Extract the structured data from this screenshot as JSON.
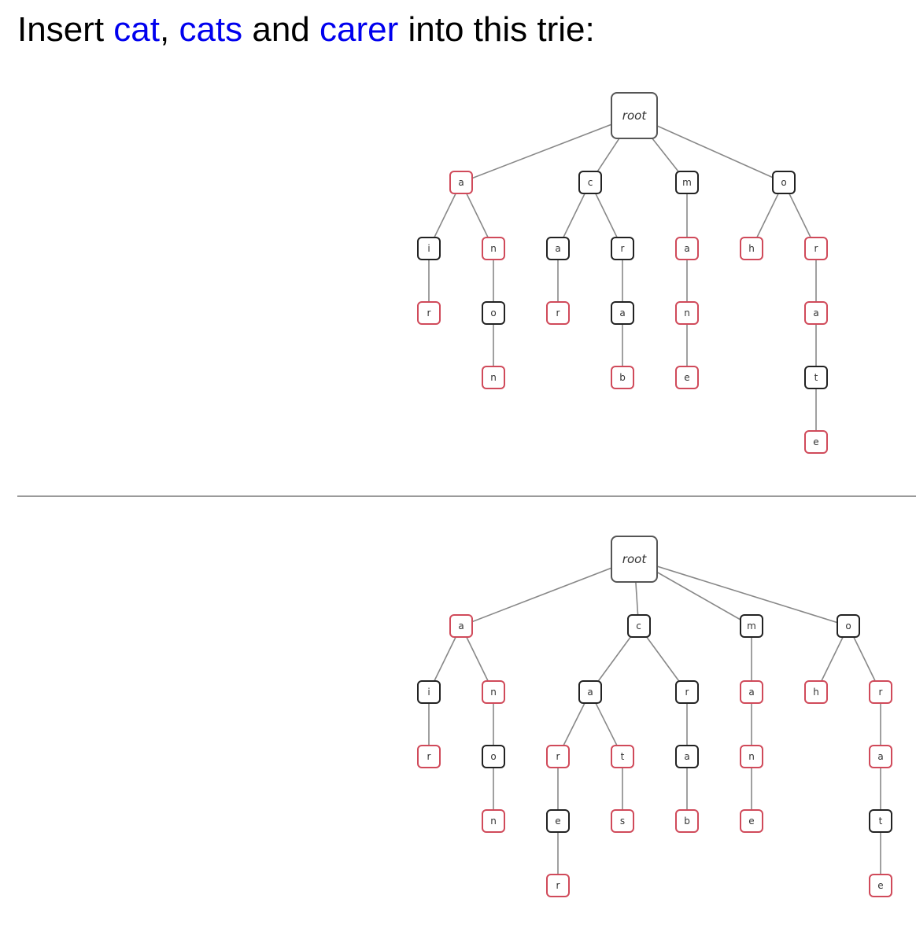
{
  "heading": {
    "prefix": "Insert ",
    "word1": "cat",
    "sep1": ", ",
    "word2": "cats",
    "sep2": " and ",
    "word3": "carer",
    "suffix": " into this trie:"
  },
  "colors": {
    "text": "#000000",
    "inserted_word": "#0000ee",
    "node_border": "#222222",
    "terminal_node_border": "#d04a5a",
    "edge": "#888888",
    "divider": "#9a9a9a"
  },
  "trie_before": {
    "root": "root",
    "children": [
      {
        "ch": "a",
        "end": true,
        "children": [
          {
            "ch": "i",
            "end": false,
            "children": [
              {
                "ch": "r",
                "end": true,
                "children": []
              }
            ]
          },
          {
            "ch": "n",
            "end": true,
            "children": [
              {
                "ch": "o",
                "end": false,
                "children": [
                  {
                    "ch": "n",
                    "end": true,
                    "children": []
                  }
                ]
              }
            ]
          }
        ]
      },
      {
        "ch": "c",
        "end": false,
        "children": [
          {
            "ch": "a",
            "end": false,
            "children": [
              {
                "ch": "r",
                "end": true,
                "children": []
              }
            ]
          },
          {
            "ch": "r",
            "end": false,
            "children": [
              {
                "ch": "a",
                "end": false,
                "children": [
                  {
                    "ch": "b",
                    "end": true,
                    "children": []
                  }
                ]
              }
            ]
          }
        ]
      },
      {
        "ch": "m",
        "end": false,
        "children": [
          {
            "ch": "a",
            "end": true,
            "children": [
              {
                "ch": "n",
                "end": true,
                "children": [
                  {
                    "ch": "e",
                    "end": true,
                    "children": []
                  }
                ]
              }
            ]
          }
        ]
      },
      {
        "ch": "o",
        "end": false,
        "children": [
          {
            "ch": "h",
            "end": true,
            "children": []
          },
          {
            "ch": "r",
            "end": true,
            "children": [
              {
                "ch": "a",
                "end": true,
                "children": [
                  {
                    "ch": "t",
                    "end": false,
                    "children": [
                      {
                        "ch": "e",
                        "end": true,
                        "children": []
                      }
                    ]
                  }
                ]
              }
            ]
          }
        ]
      }
    ]
  },
  "trie_after": {
    "root": "root",
    "children": [
      {
        "ch": "a",
        "end": true,
        "children": [
          {
            "ch": "i",
            "end": false,
            "children": [
              {
                "ch": "r",
                "end": true,
                "children": []
              }
            ]
          },
          {
            "ch": "n",
            "end": true,
            "children": [
              {
                "ch": "o",
                "end": false,
                "children": [
                  {
                    "ch": "n",
                    "end": true,
                    "children": []
                  }
                ]
              }
            ]
          }
        ]
      },
      {
        "ch": "c",
        "end": false,
        "children": [
          {
            "ch": "a",
            "end": false,
            "children": [
              {
                "ch": "r",
                "end": true,
                "children": [
                  {
                    "ch": "e",
                    "end": false,
                    "children": [
                      {
                        "ch": "r",
                        "end": true,
                        "children": []
                      }
                    ]
                  }
                ]
              },
              {
                "ch": "t",
                "end": true,
                "children": [
                  {
                    "ch": "s",
                    "end": true,
                    "children": []
                  }
                ]
              }
            ]
          },
          {
            "ch": "r",
            "end": false,
            "children": [
              {
                "ch": "a",
                "end": false,
                "children": [
                  {
                    "ch": "b",
                    "end": true,
                    "children": []
                  }
                ]
              }
            ]
          }
        ]
      },
      {
        "ch": "m",
        "end": false,
        "children": [
          {
            "ch": "a",
            "end": true,
            "children": [
              {
                "ch": "n",
                "end": true,
                "children": [
                  {
                    "ch": "e",
                    "end": true,
                    "children": []
                  }
                ]
              }
            ]
          }
        ]
      },
      {
        "ch": "o",
        "end": false,
        "children": [
          {
            "ch": "h",
            "end": true,
            "children": []
          },
          {
            "ch": "r",
            "end": true,
            "children": [
              {
                "ch": "a",
                "end": true,
                "children": [
                  {
                    "ch": "t",
                    "end": false,
                    "children": [
                      {
                        "ch": "e",
                        "end": true,
                        "children": []
                      }
                    ]
                  }
                ]
              }
            ]
          }
        ]
      }
    ]
  }
}
